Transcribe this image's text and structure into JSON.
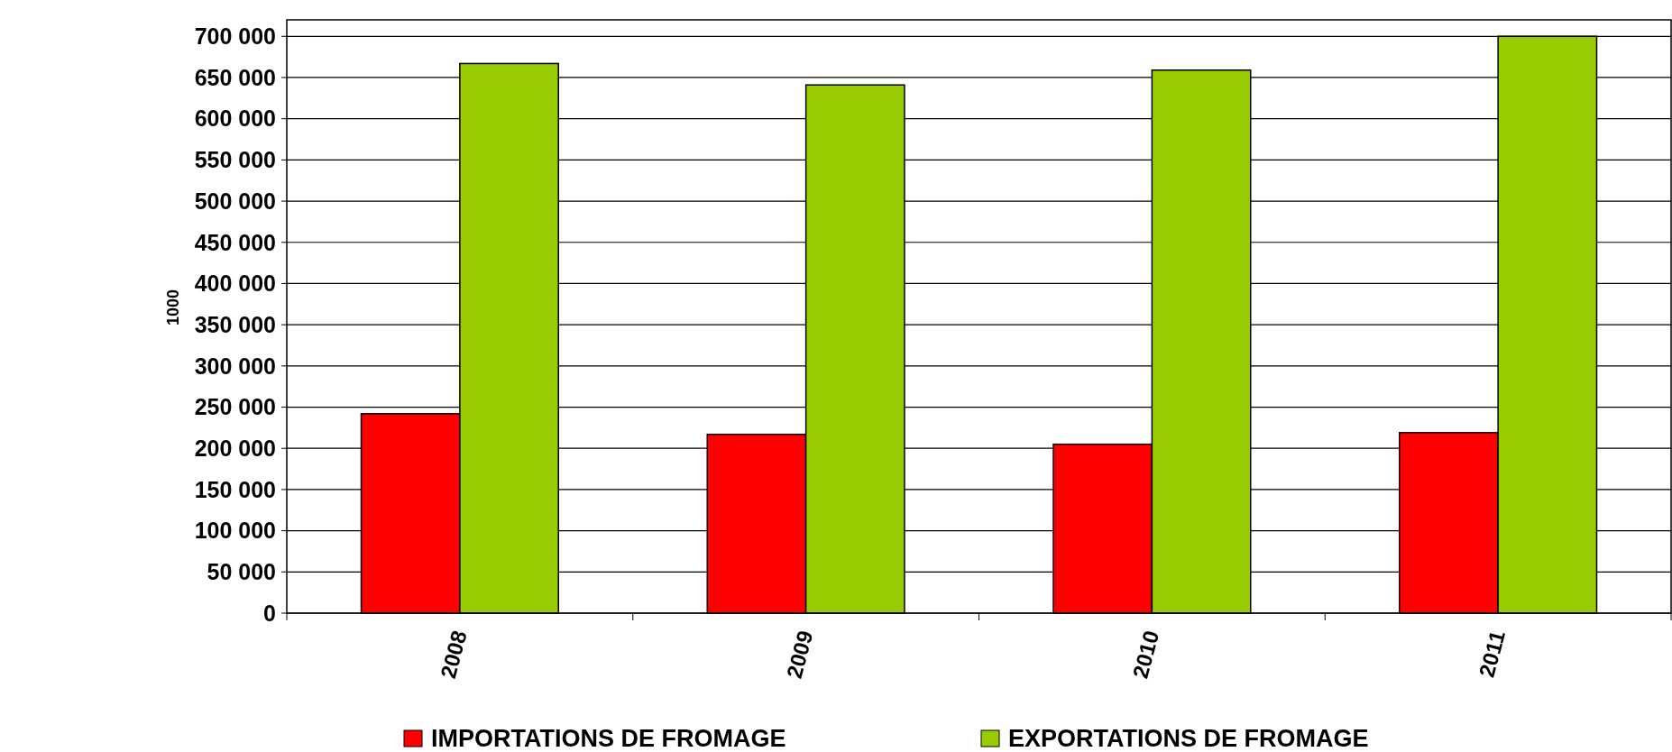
{
  "chart_data": {
    "type": "bar",
    "ylabel": "1000",
    "categories": [
      "2008",
      "2009",
      "2010",
      "2011"
    ],
    "series": [
      {
        "name": "IMPORTATIONS DE FROMAGE",
        "color": "#ff0000",
        "values": [
          242000,
          217000,
          205000,
          219000
        ]
      },
      {
        "name": "EXPORTATIONS DE FROMAGE",
        "color": "#99cc00",
        "values": [
          667000,
          641000,
          659000,
          700000
        ]
      }
    ],
    "ylim": [
      0,
      720000
    ],
    "yticks": [
      {
        "value": 0,
        "label": "0"
      },
      {
        "value": 50000,
        "label": "50 000"
      },
      {
        "value": 100000,
        "label": "100 000"
      },
      {
        "value": 150000,
        "label": "150 000"
      },
      {
        "value": 200000,
        "label": "200 000"
      },
      {
        "value": 250000,
        "label": "250 000"
      },
      {
        "value": 300000,
        "label": "300 000"
      },
      {
        "value": 350000,
        "label": "350 000"
      },
      {
        "value": 400000,
        "label": "400 000"
      },
      {
        "value": 450000,
        "label": "450 000"
      },
      {
        "value": 500000,
        "label": "500 000"
      },
      {
        "value": 550000,
        "label": "550 000"
      },
      {
        "value": 600000,
        "label": "600 000"
      },
      {
        "value": 650000,
        "label": "650 000"
      },
      {
        "value": 700000,
        "label": "700 000"
      }
    ],
    "grid": "y",
    "legend": "bottom"
  }
}
